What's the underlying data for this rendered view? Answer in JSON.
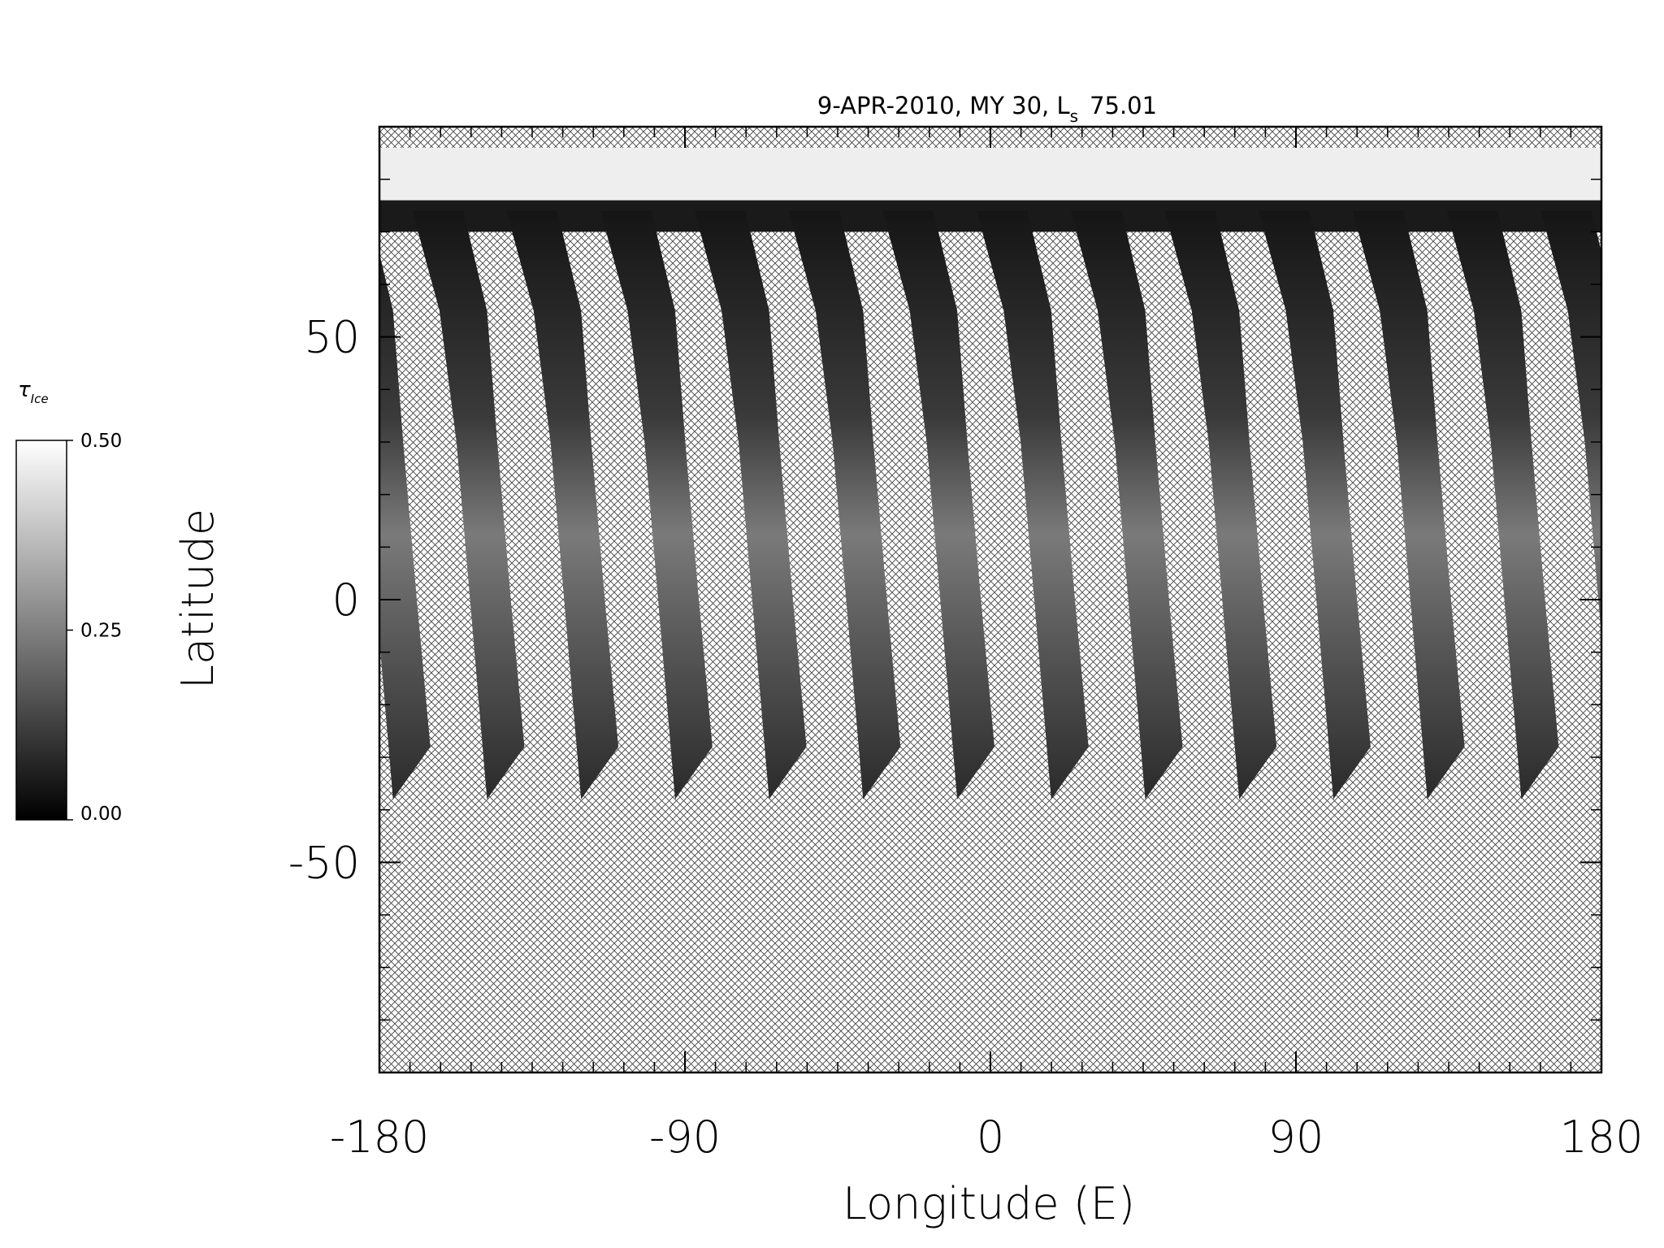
{
  "chart_data": {
    "type": "map",
    "title": "9-APR-2010, MY 30,  L",
    "title_subscript": "s",
    "title_ls": "75.01",
    "xlabel": "Longitude (E)",
    "ylabel": "Latitude",
    "xlim": [
      -180,
      180
    ],
    "xticks": [
      -180,
      -90,
      0,
      90,
      180
    ],
    "x_minor_interval": 9,
    "ylim": [
      -90,
      90
    ],
    "yticks": [
      -50,
      0,
      50
    ],
    "y_minor_interval": 10,
    "colorbar": {
      "label": "τ",
      "label_subscript": "Ice",
      "lim": [
        0,
        0.5
      ],
      "ticks": [
        {
          "value": 0,
          "label": "0.00"
        },
        {
          "value": 0.25,
          "label": "0.25"
        },
        {
          "value": 0.5,
          "label": "0.50"
        }
      ],
      "colors": [
        "#000000",
        "#ffffff"
      ]
    }
  }
}
